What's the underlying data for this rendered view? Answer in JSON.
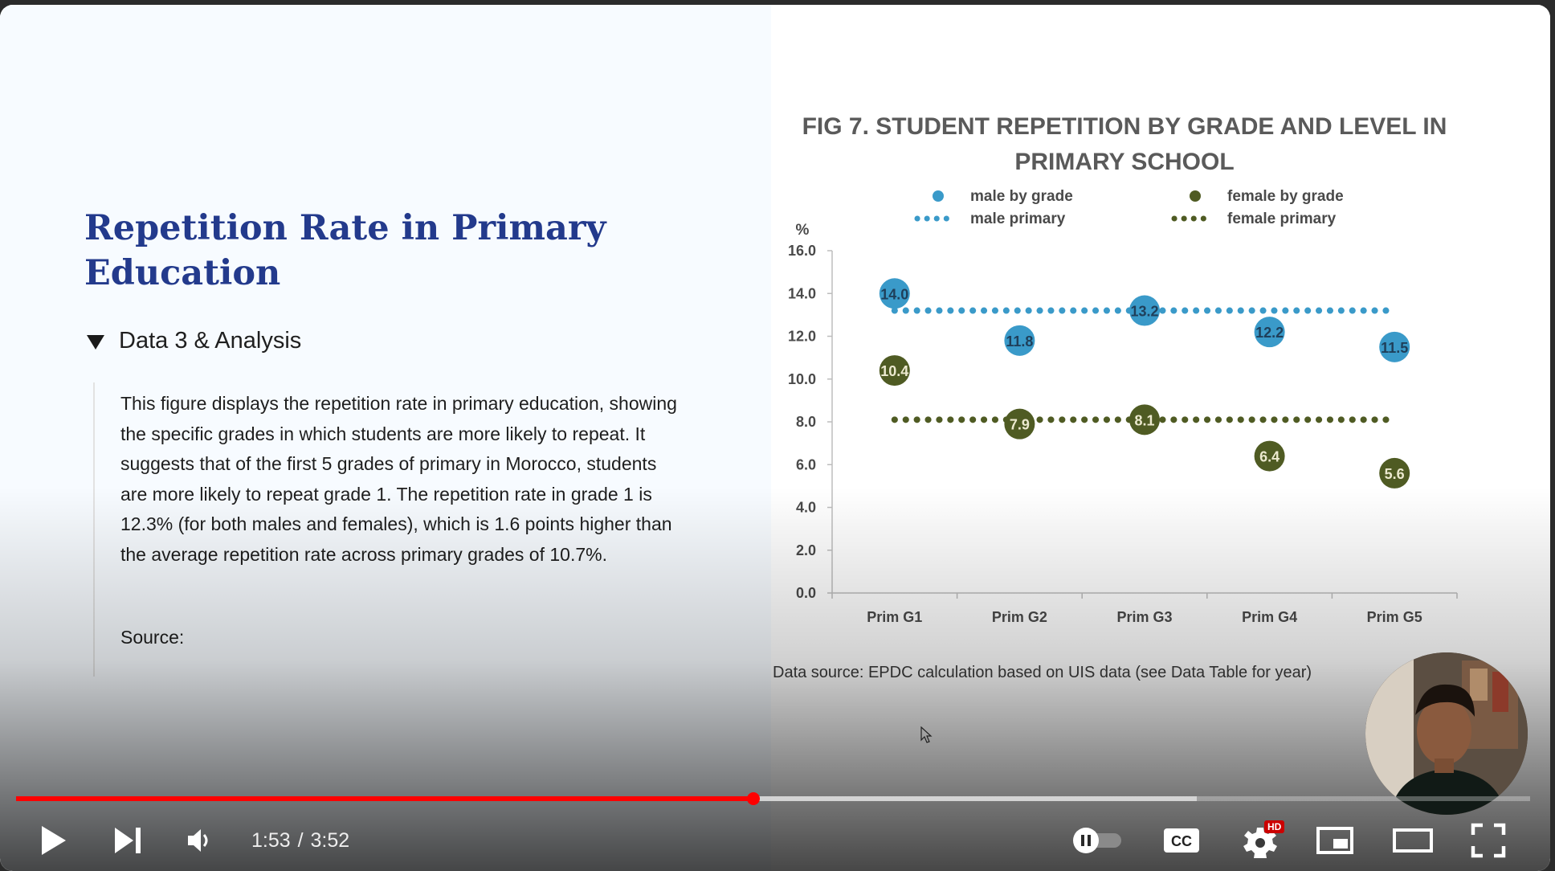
{
  "slide": {
    "title": "Repetition Rate in Primary Education",
    "section_label": "Data 3 & Analysis",
    "description": "This figure displays the repetition rate in primary education, showing the specific grades in which students are more likely to repeat. It suggests that of the first 5 grades of primary in Morocco, students are more likely to repeat grade 1. The repetition rate in grade 1 is 12.3% (for both males and females), which is 1.6 points higher than the average repetition rate across primary grades of 10.7%.",
    "source_label": "Source:"
  },
  "chart_data": {
    "type": "scatter",
    "title": "FIG 7. STUDENT REPETITION BY GRADE AND LEVEL IN PRIMARY SCHOOL",
    "ylabel": "%",
    "xlabel": "",
    "categories": [
      "Prim G1",
      "Prim G2",
      "Prim G3",
      "Prim G4",
      "Prim G5"
    ],
    "ylim": [
      0,
      16
    ],
    "yticks": [
      "0.0",
      "2.0",
      "4.0",
      "6.0",
      "8.0",
      "10.0",
      "12.0",
      "14.0",
      "16.0"
    ],
    "grid": false,
    "legend_position": "top",
    "series": [
      {
        "name": "male by grade",
        "kind": "points",
        "color": "#3a9ac9",
        "values": [
          14.0,
          11.8,
          13.2,
          12.2,
          11.5
        ],
        "labels": [
          "14.0",
          "11.8",
          "13.2",
          "12.2",
          "11.5"
        ]
      },
      {
        "name": "female by grade",
        "kind": "points",
        "color": "#4f5b23",
        "values": [
          10.4,
          7.9,
          8.1,
          6.4,
          5.6
        ],
        "labels": [
          "10.4",
          "7.9",
          "8.1",
          "6.4",
          "5.6"
        ]
      },
      {
        "name": "male primary",
        "kind": "dotted-line",
        "color": "#3a9ac9",
        "value": 13.2
      },
      {
        "name": "female primary",
        "kind": "dotted-line",
        "color": "#4f5b23",
        "value": 8.1
      }
    ],
    "source": "Data source:  EPDC calculation based on UIS data (see Data Table for year)"
  },
  "player": {
    "time_current": "1:53",
    "time_separator": "/",
    "time_total": "3:52",
    "progress_played": 0.487,
    "progress_buffered": 0.78,
    "hd_badge": "HD",
    "accent_color": "#ff0000",
    "icons": [
      "play-icon",
      "next-icon",
      "volume-icon",
      "autoplay-toggle-icon",
      "captions-icon",
      "settings-icon",
      "miniplayer-icon",
      "theater-icon",
      "fullscreen-icon"
    ]
  }
}
